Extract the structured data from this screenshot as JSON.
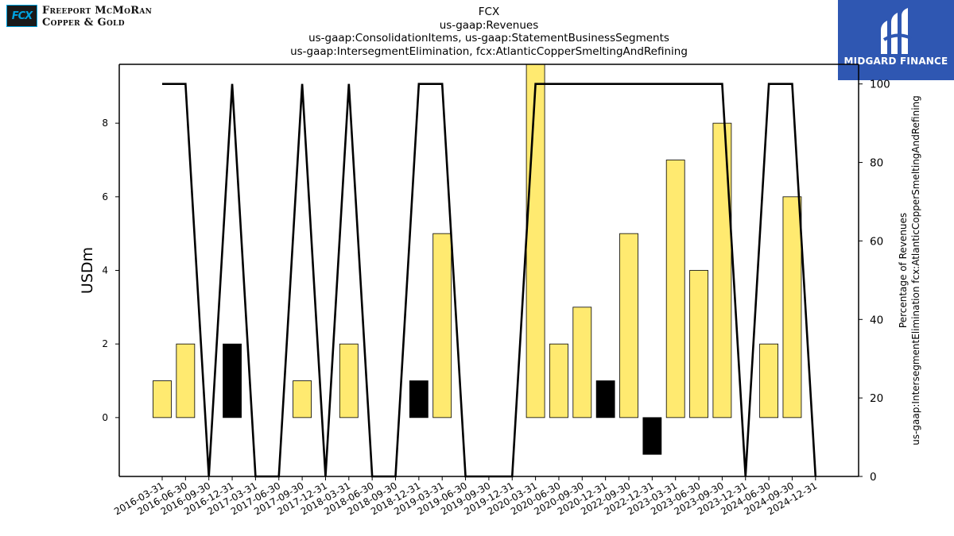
{
  "brand": {
    "logo_mark": "FCX",
    "name_line1": "Freeport McMoRan",
    "name_line2": "Copper & Gold"
  },
  "watermark": {
    "text": "MIDGARD FINANCE"
  },
  "chart_data": {
    "type": "bar",
    "title": "FCX",
    "subtitle_lines": [
      "us-gaap:Revenues",
      "us-gaap:ConsolidationItems, us-gaap:StatementBusinessSegments",
      "us-gaap:IntersegmentElimination, fcx:AtlanticCopperSmeltingAndRefining"
    ],
    "ylabel": "USDm",
    "y2label_lines": [
      "Percentage of Revenues",
      "us-gaap:IntersegmentElimination fcx:AtlanticCopperSmeltingAndRefining"
    ],
    "ylim": [
      -1.6,
      9.6
    ],
    "y2lim": [
      0,
      105
    ],
    "yticks": [
      0,
      2,
      4,
      6,
      8
    ],
    "y2ticks": [
      0,
      20,
      40,
      60,
      80,
      100
    ],
    "categories": [
      "2016-03-31",
      "2016-06-30",
      "2016-09-30",
      "2016-12-31",
      "2017-03-31",
      "2017-06-30",
      "2017-09-30",
      "2017-12-31",
      "2018-03-31",
      "2018-06-30",
      "2018-09-30",
      "2018-12-31",
      "2019-03-31",
      "2019-06-30",
      "2019-09-30",
      "2019-12-31",
      "2020-03-31",
      "2020-06-30",
      "2020-09-30",
      "2020-12-31",
      "2022-09-30",
      "2022-12-31",
      "2023-03-31",
      "2023-06-30",
      "2023-09-30",
      "2023-12-31",
      "2024-06-30",
      "2024-09-30",
      "2024-12-31"
    ],
    "series": [
      {
        "kind": "bar",
        "values": [
          1,
          2,
          0,
          2,
          0,
          0,
          1,
          0,
          2,
          0,
          0,
          1,
          5,
          0,
          0,
          0,
          10,
          2,
          3,
          1,
          5,
          -1,
          7,
          4,
          8,
          0,
          2,
          6,
          0
        ],
        "bar_colors": [
          "yellow",
          "yellow",
          "yellow",
          "black",
          "yellow",
          "yellow",
          "yellow",
          "yellow",
          "yellow",
          "yellow",
          "yellow",
          "black",
          "yellow",
          "yellow",
          "yellow",
          "yellow",
          "yellow",
          "yellow",
          "yellow",
          "black",
          "yellow",
          "black",
          "yellow",
          "yellow",
          "yellow",
          "yellow",
          "yellow",
          "yellow",
          "yellow"
        ]
      },
      {
        "kind": "line",
        "axis": "right",
        "values": [
          100,
          100,
          0,
          100,
          0,
          0,
          100,
          0,
          100,
          0,
          0,
          100,
          100,
          0,
          0,
          0,
          100,
          100,
          100,
          100,
          100,
          100,
          100,
          100,
          100,
          0,
          100,
          100,
          0
        ]
      }
    ],
    "colors": {
      "yellow": "#ffea70",
      "black": "#000000",
      "line": "#000000"
    },
    "grid": false,
    "legend": "none"
  }
}
